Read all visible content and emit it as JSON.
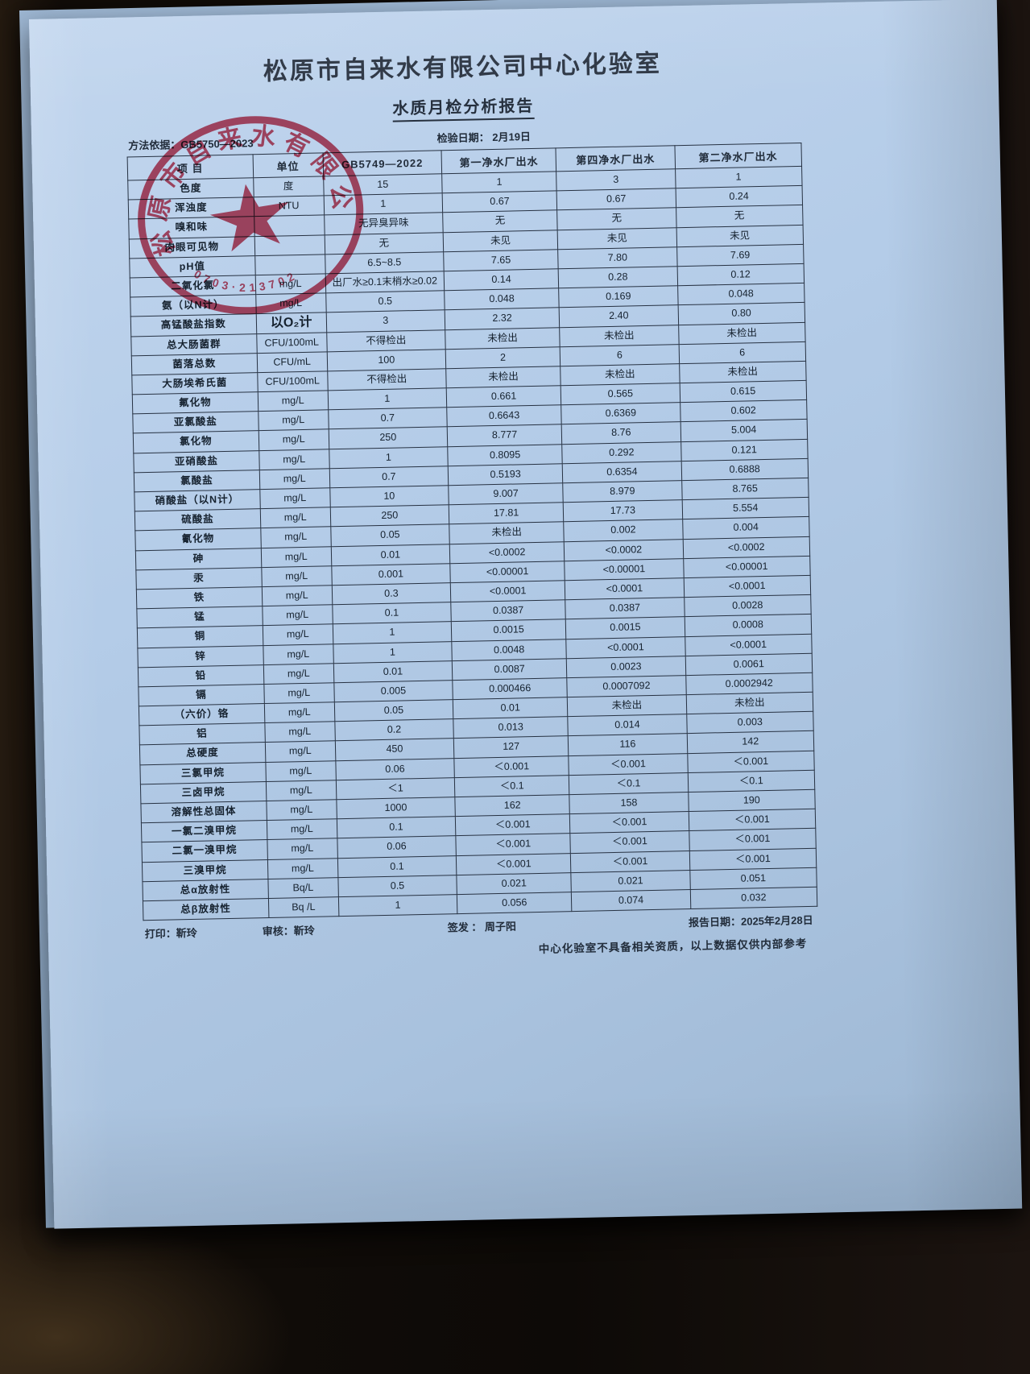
{
  "page": {
    "title": "松原市自来水有限公司中心化验室",
    "subtitle": "水质月检分析报告",
    "method_basis": "方法依据：GB5750—2023",
    "test_date": "检验日期： 2月19日"
  },
  "stamp": {
    "ring_text": "松原市自来水有限公司",
    "serial": "0703·213702",
    "color": "#c9314a"
  },
  "colors": {
    "paper": "#b4cce8",
    "ink": "#1b2634",
    "table_line": "#273243"
  },
  "table": {
    "headers": [
      "项  目",
      "单位",
      "GB5749—2022",
      "第一净水厂出水",
      "第四净水厂出水",
      "第二净水厂出水"
    ],
    "rows": [
      [
        "色度",
        "度",
        "15",
        "1",
        "3",
        "1"
      ],
      [
        "浑浊度",
        "NTU",
        "1",
        "0.67",
        "0.67",
        "0.24"
      ],
      [
        "嗅和味",
        "",
        "无异臭异味",
        "无",
        "无",
        "无"
      ],
      [
        "肉眼可见物",
        "",
        "无",
        "未见",
        "未见",
        "未见"
      ],
      [
        "pH值",
        "",
        "6.5~8.5",
        "7.65",
        "7.80",
        "7.69"
      ],
      [
        "二氧化氯",
        "mg/L",
        "出厂水≥0.1末梢水≥0.02",
        "0.14",
        "0.28",
        "0.12"
      ],
      [
        "氨（以N计）",
        "mg/L",
        "0.5",
        "0.048",
        "0.169",
        "0.048"
      ],
      [
        "高锰酸盐指数",
        "以O₂计",
        "3",
        "2.32",
        "2.40",
        "0.80"
      ],
      [
        "总大肠菌群",
        "CFU/100mL",
        "不得检出",
        "未检出",
        "未检出",
        "未检出"
      ],
      [
        "菌落总数",
        "CFU/mL",
        "100",
        "2",
        "6",
        "6"
      ],
      [
        "大肠埃希氏菌",
        "CFU/100mL",
        "不得检出",
        "未检出",
        "未检出",
        "未检出"
      ],
      [
        "氟化物",
        "mg/L",
        "1",
        "0.661",
        "0.565",
        "0.615"
      ],
      [
        "亚氯酸盐",
        "mg/L",
        "0.7",
        "0.6643",
        "0.6369",
        "0.602"
      ],
      [
        "氯化物",
        "mg/L",
        "250",
        "8.777",
        "8.76",
        "5.004"
      ],
      [
        "亚硝酸盐",
        "mg/L",
        "1",
        "0.8095",
        "0.292",
        "0.121"
      ],
      [
        "氯酸盐",
        "mg/L",
        "0.7",
        "0.5193",
        "0.6354",
        "0.6888"
      ],
      [
        "硝酸盐（以N计）",
        "mg/L",
        "10",
        "9.007",
        "8.979",
        "8.765"
      ],
      [
        "硫酸盐",
        "mg/L",
        "250",
        "17.81",
        "17.73",
        "5.554"
      ],
      [
        "氰化物",
        "mg/L",
        "0.05",
        "未检出",
        "0.002",
        "0.004"
      ],
      [
        "砷",
        "mg/L",
        "0.01",
        "<0.0002",
        "<0.0002",
        "<0.0002"
      ],
      [
        "汞",
        "mg/L",
        "0.001",
        "<0.00001",
        "<0.00001",
        "<0.00001"
      ],
      [
        "铁",
        "mg/L",
        "0.3",
        "<0.0001",
        "<0.0001",
        "<0.0001"
      ],
      [
        "锰",
        "mg/L",
        "0.1",
        "0.0387",
        "0.0387",
        "0.0028"
      ],
      [
        "铜",
        "mg/L",
        "1",
        "0.0015",
        "0.0015",
        "0.0008"
      ],
      [
        "锌",
        "mg/L",
        "1",
        "0.0048",
        "<0.0001",
        "<0.0001"
      ],
      [
        "铅",
        "mg/L",
        "0.01",
        "0.0087",
        "0.0023",
        "0.0061"
      ],
      [
        "镉",
        "mg/L",
        "0.005",
        "0.000466",
        "0.0007092",
        "0.0002942"
      ],
      [
        "（六价）铬",
        "mg/L",
        "0.05",
        "0.01",
        "未检出",
        "未检出"
      ],
      [
        "铝",
        "mg/L",
        "0.2",
        "0.013",
        "0.014",
        "0.003"
      ],
      [
        "总硬度",
        "mg/L",
        "450",
        "127",
        "116",
        "142"
      ],
      [
        "三氯甲烷",
        "mg/L",
        "0.06",
        "＜0.001",
        "＜0.001",
        "＜0.001"
      ],
      [
        "三卤甲烷",
        "mg/L",
        "＜1",
        "＜0.1",
        "＜0.1",
        "＜0.1"
      ],
      [
        "溶解性总固体",
        "mg/L",
        "1000",
        "162",
        "158",
        "190"
      ],
      [
        "一氯二溴甲烷",
        "mg/L",
        "0.1",
        "＜0.001",
        "＜0.001",
        "＜0.001"
      ],
      [
        "二氯一溴甲烷",
        "mg/L",
        "0.06",
        "＜0.001",
        "＜0.001",
        "＜0.001"
      ],
      [
        "三溴甲烷",
        "mg/L",
        "0.1",
        "＜0.001",
        "＜0.001",
        "＜0.001"
      ],
      [
        "总α放射性",
        "Bq/L",
        "0.5",
        "0.021",
        "0.021",
        "0.051"
      ],
      [
        "总β放射性",
        "Bq /L",
        "1",
        "0.056",
        "0.074",
        "0.032"
      ]
    ]
  },
  "footer": {
    "print": "打印：靳玲",
    "review": "审核：靳玲",
    "issue": "签发 ：  周子阳",
    "report_date": "报告日期：2025年2月28日",
    "disclaimer": "中心化验室不具备相关资质，以上数据仅供内部参考"
  }
}
